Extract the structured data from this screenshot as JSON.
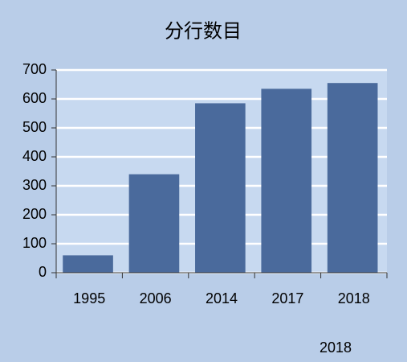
{
  "chart_data": {
    "type": "bar",
    "title": "分行数目",
    "categories": [
      "1995",
      "2006",
      "2014",
      "2017",
      "2018"
    ],
    "values": [
      60,
      340,
      585,
      635,
      655
    ],
    "color": "#4a6a9c",
    "ylim": [
      0,
      700
    ],
    "yticks": [
      0,
      100,
      200,
      300,
      400,
      500,
      600,
      700
    ],
    "grid": true,
    "annotation": "2018"
  }
}
